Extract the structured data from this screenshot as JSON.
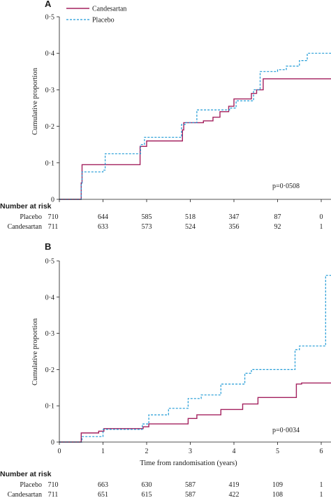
{
  "colors": {
    "candesartan": "#a3205e",
    "placebo": "#1e9ad6",
    "axis": "#1a1a1a"
  },
  "chart_data": [
    {
      "panel": "A",
      "type": "line",
      "title": "",
      "xlabel": "",
      "ylabel": "Cumulative proportion",
      "xlim": [
        0,
        6.3
      ],
      "ylim": [
        0,
        0.5
      ],
      "xticks": [
        0,
        1,
        2,
        3,
        4,
        5,
        6
      ],
      "xtick_labels": [],
      "yticks": [
        0,
        0.1,
        0.2,
        0.3,
        0.4,
        0.5
      ],
      "ytick_labels": [
        "0",
        "0·1",
        "0·2",
        "0·3",
        "0·4",
        "0·5"
      ],
      "legend": {
        "placement": "top-left",
        "entries": [
          "Candesartan",
          "Placebo"
        ]
      },
      "annotation": "p=0·0508",
      "series": [
        {
          "name": "Candesartan",
          "style": "solid",
          "color": "#a3205e",
          "x": [
            0,
            0.5,
            0.5,
            0.52,
            0.52,
            1.85,
            1.85,
            2.0,
            2.0,
            2.82,
            2.82,
            2.85,
            2.85,
            3.3,
            3.3,
            3.52,
            3.52,
            3.68,
            3.68,
            3.88,
            3.88,
            4.0,
            4.0,
            4.4,
            4.4,
            4.52,
            4.52,
            4.67,
            4.67,
            6.0,
            6.0,
            6.3
          ],
          "y": [
            0,
            0,
            0.045,
            0.045,
            0.095,
            0.095,
            0.145,
            0.145,
            0.16,
            0.16,
            0.19,
            0.19,
            0.21,
            0.21,
            0.215,
            0.215,
            0.225,
            0.225,
            0.24,
            0.24,
            0.255,
            0.255,
            0.275,
            0.275,
            0.29,
            0.29,
            0.3,
            0.3,
            0.33,
            0.33,
            0.33,
            0.33
          ]
        },
        {
          "name": "Placebo",
          "style": "dashed",
          "color": "#1e9ad6",
          "x": [
            0,
            0.5,
            0.5,
            0.52,
            0.52,
            1.0,
            1.0,
            1.05,
            1.05,
            1.86,
            1.86,
            1.95,
            1.95,
            2.8,
            2.8,
            2.88,
            2.88,
            3.15,
            3.15,
            3.5,
            3.5,
            3.9,
            3.9,
            4.05,
            4.05,
            4.45,
            4.45,
            4.6,
            4.6,
            5.0,
            5.0,
            5.2,
            5.2,
            5.5,
            5.5,
            5.68,
            5.68,
            5.9,
            5.9,
            6.3
          ],
          "y": [
            0,
            0,
            0.04,
            0.04,
            0.075,
            0.075,
            0.08,
            0.08,
            0.125,
            0.125,
            0.15,
            0.15,
            0.17,
            0.17,
            0.205,
            0.205,
            0.21,
            0.21,
            0.245,
            0.245,
            0.245,
            0.245,
            0.25,
            0.25,
            0.27,
            0.27,
            0.3,
            0.3,
            0.35,
            0.35,
            0.355,
            0.355,
            0.365,
            0.365,
            0.38,
            0.38,
            0.4,
            0.4,
            0.4,
            0.4
          ]
        }
      ],
      "risk_table": {
        "heading": "Number at risk",
        "rows": [
          {
            "label": "Placebo",
            "values": [
              "710",
              "644",
              "585",
              "518",
              "347",
              "87",
              "0"
            ]
          },
          {
            "label": "Candesartan",
            "values": [
              "711",
              "633",
              "573",
              "524",
              "356",
              "92",
              "1"
            ]
          }
        ]
      }
    },
    {
      "panel": "B",
      "type": "line",
      "title": "",
      "xlabel": "Time from randomisation (years)",
      "ylabel": "Cumulative proportion",
      "xlim": [
        0,
        6.3
      ],
      "ylim": [
        0,
        0.5
      ],
      "xticks": [
        0,
        1,
        2,
        3,
        4,
        5,
        6
      ],
      "xtick_labels": [
        "0",
        "1",
        "2",
        "3",
        "4",
        "5",
        "6"
      ],
      "yticks": [
        0,
        0.1,
        0.2,
        0.3,
        0.4,
        0.5
      ],
      "ytick_labels": [
        "0",
        "0·1",
        "0·2",
        "0·3",
        "0·4",
        "0·5"
      ],
      "annotation": "p=0·0034",
      "series": [
        {
          "name": "Candesartan",
          "style": "solid",
          "color": "#a3205e",
          "x": [
            0,
            0.5,
            0.5,
            0.9,
            0.9,
            1.02,
            1.02,
            1.92,
            1.92,
            2.05,
            2.05,
            2.95,
            2.95,
            3.15,
            3.15,
            3.7,
            3.7,
            4.2,
            4.2,
            4.55,
            4.55,
            5.43,
            5.43,
            5.55,
            5.55,
            6.3
          ],
          "y": [
            0,
            0,
            0.025,
            0.025,
            0.03,
            0.03,
            0.037,
            0.037,
            0.042,
            0.042,
            0.05,
            0.05,
            0.065,
            0.065,
            0.075,
            0.075,
            0.09,
            0.09,
            0.105,
            0.105,
            0.123,
            0.123,
            0.16,
            0.16,
            0.163,
            0.163
          ]
        },
        {
          "name": "Placebo",
          "style": "dashed",
          "color": "#1e9ad6",
          "x": [
            0,
            0.52,
            0.52,
            1.0,
            1.0,
            1.9,
            1.9,
            2.05,
            2.05,
            2.5,
            2.5,
            2.95,
            2.95,
            3.25,
            3.25,
            3.7,
            3.7,
            4.25,
            4.25,
            4.4,
            4.4,
            5.4,
            5.4,
            5.5,
            5.5,
            6.1,
            6.1,
            6.3
          ],
          "y": [
            0,
            0,
            0.015,
            0.015,
            0.035,
            0.035,
            0.05,
            0.05,
            0.075,
            0.075,
            0.093,
            0.093,
            0.12,
            0.12,
            0.13,
            0.13,
            0.16,
            0.16,
            0.19,
            0.19,
            0.2,
            0.2,
            0.255,
            0.255,
            0.265,
            0.265,
            0.46,
            0.46
          ]
        }
      ],
      "risk_table": {
        "heading": "Number at risk",
        "rows": [
          {
            "label": "Placebo",
            "values": [
              "710",
              "663",
              "630",
              "587",
              "419",
              "109",
              "1"
            ]
          },
          {
            "label": "Candesartan",
            "values": [
              "711",
              "651",
              "615",
              "587",
              "422",
              "108",
              "1"
            ]
          }
        ]
      }
    }
  ]
}
